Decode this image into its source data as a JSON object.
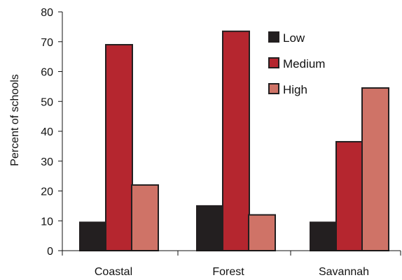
{
  "chart_data": {
    "type": "bar",
    "title": "",
    "xlabel": "",
    "ylabel": "Percent of schools",
    "ylim": [
      0,
      80
    ],
    "yticks": [
      0,
      10,
      20,
      30,
      40,
      50,
      60,
      70,
      80
    ],
    "categories": [
      "Coastal",
      "Forest",
      "Savannah"
    ],
    "series": [
      {
        "name": "Low",
        "values": [
          9.5,
          15,
          9.5
        ],
        "color": "#231f20"
      },
      {
        "name": "Medium",
        "values": [
          69,
          73.5,
          36.5
        ],
        "color": "#b5262f"
      },
      {
        "name": "High",
        "values": [
          22,
          12,
          54.5
        ],
        "color": "#cf7367"
      }
    ],
    "grid": false,
    "legend": "top-right"
  }
}
